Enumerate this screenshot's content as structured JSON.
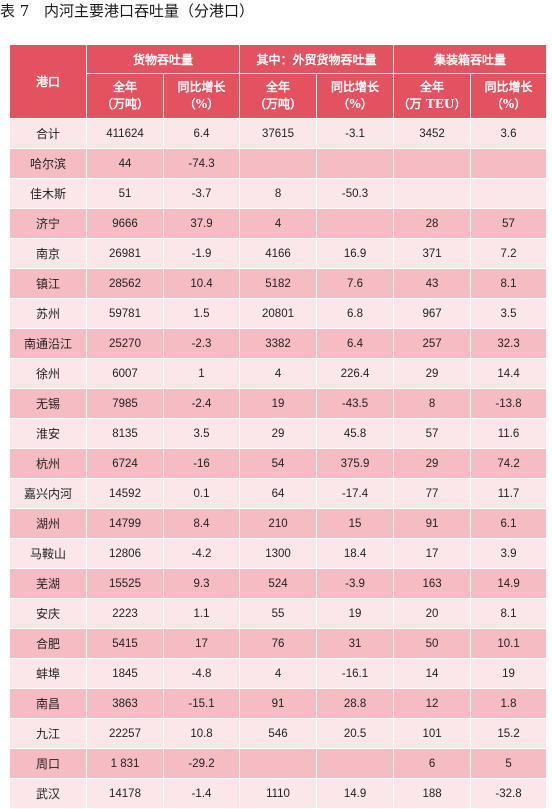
{
  "caption": {
    "label": "表 7",
    "title": "内河主要港口吞吐量（分港口）"
  },
  "headers": {
    "port": "港口",
    "groups": [
      "货物吞吐量",
      "其中：外贸货物吞吐量",
      "集装箱吞吐量"
    ],
    "sub": [
      {
        "line1": "全年",
        "line2": "（万吨）"
      },
      {
        "line1": "同比增长",
        "line2": "（%）"
      },
      {
        "line1": "全年",
        "line2": "（万吨）"
      },
      {
        "line1": "同比增长",
        "line2": "（%）"
      },
      {
        "line1": "全年",
        "line2": "（万 TEU）"
      },
      {
        "line1": "同比增长",
        "line2": "（%）"
      }
    ]
  },
  "colors": {
    "header": "#e4515f",
    "row_light": "#fbe7ea",
    "row_dark": "#f5bcc3",
    "header_text": "#ffffff"
  },
  "rows": [
    [
      "合计",
      "411624",
      "6.4",
      "37615",
      "-3.1",
      "3452",
      "3.6"
    ],
    [
      "哈尔滨",
      "44",
      "-74.3",
      "",
      "",
      "",
      ""
    ],
    [
      "佳木斯",
      "51",
      "-3.7",
      "8",
      "-50.3",
      "",
      ""
    ],
    [
      "济宁",
      "9666",
      "37.9",
      "4",
      "",
      "28",
      "57"
    ],
    [
      "南京",
      "26981",
      "-1.9",
      "4166",
      "16.9",
      "371",
      "7.2"
    ],
    [
      "镇江",
      "28562",
      "10.4",
      "5182",
      "7.6",
      "43",
      "8.1"
    ],
    [
      "苏州",
      "59781",
      "1.5",
      "20801",
      "6.8",
      "967",
      "3.5"
    ],
    [
      "南通沿江",
      "25270",
      "-2.3",
      "3382",
      "6.4",
      "257",
      "32.3"
    ],
    [
      "徐州",
      "6007",
      "1",
      "4",
      "226.4",
      "29",
      "14.4"
    ],
    [
      "无锡",
      "7985",
      "-2.4",
      "19",
      "-43.5",
      "8",
      "-13.8"
    ],
    [
      "淮安",
      "8135",
      "3.5",
      "29",
      "45.8",
      "57",
      "11.6"
    ],
    [
      "杭州",
      "6724",
      "-16",
      "54",
      "375.9",
      "29",
      "74.2"
    ],
    [
      "嘉兴内河",
      "14592",
      "0.1",
      "64",
      "-17.4",
      "77",
      "11.7"
    ],
    [
      "湖州",
      "14799",
      "8.4",
      "210",
      "15",
      "91",
      "6.1"
    ],
    [
      "马鞍山",
      "12806",
      "-4.2",
      "1300",
      "18.4",
      "17",
      "3.9"
    ],
    [
      "芜湖",
      "15525",
      "9.3",
      "524",
      "-3.9",
      "163",
      "14.9"
    ],
    [
      "安庆",
      "2223",
      "1.1",
      "55",
      "19",
      "20",
      "8.1"
    ],
    [
      "合肥",
      "5415",
      "17",
      "76",
      "31",
      "50",
      "10.1"
    ],
    [
      "蚌埠",
      "1845",
      "-4.8",
      "4",
      "-16.1",
      "14",
      "19"
    ],
    [
      "南昌",
      "3863",
      "-15.1",
      "91",
      "28.8",
      "12",
      "1.8"
    ],
    [
      "九江",
      "22257",
      "10.8",
      "546",
      "20.5",
      "101",
      "15.2"
    ],
    [
      "周口",
      "1 831",
      "-29.2",
      "",
      "",
      "6",
      "5"
    ],
    [
      "武汉",
      "14178",
      "-1.4",
      "1110",
      "14.9",
      "188",
      "-32.8"
    ]
  ]
}
